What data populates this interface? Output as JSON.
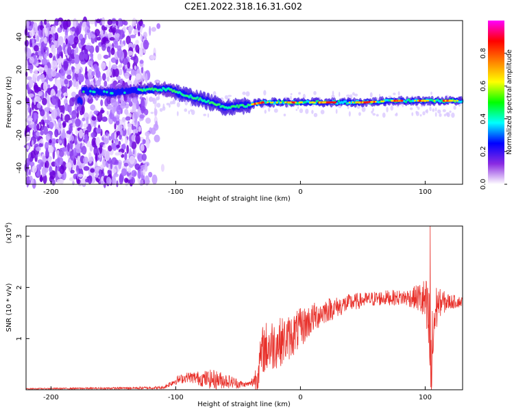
{
  "page_title": "C2E1.2022.318.16.31.G02",
  "chart_data": [
    {
      "type": "heatmap",
      "title": "C2E1.2022.318.16.31.G02",
      "xlabel": "Height of straight line (km)",
      "ylabel": "Frequency (Hz)",
      "xlim": [
        -220,
        130
      ],
      "ylim": [
        -50,
        50
      ],
      "xticks": [
        -200,
        -100,
        0,
        100
      ],
      "yticks": [
        -40,
        -20,
        0,
        20,
        40
      ],
      "colorbar": {
        "label": "Normalized spectral amplitude",
        "range": [
          0,
          1
        ],
        "ticks": [
          "0.0",
          "0.2",
          "0.4",
          "0.6",
          "0.8"
        ],
        "colors": [
          "#ffffff",
          "#8a2be2",
          "#0000ff",
          "#00ffff",
          "#00ff00",
          "#ffff00",
          "#ff8000",
          "#ff0000",
          "#ff00ff"
        ]
      },
      "ridge": {
        "description_points_km_hz": [
          [
            -175,
            7
          ],
          [
            -150,
            6
          ],
          [
            -120,
            8
          ],
          [
            -105,
            8
          ],
          [
            -95,
            5
          ],
          [
            -80,
            2
          ],
          [
            -60,
            -3
          ],
          [
            -45,
            -2
          ],
          [
            -30,
            0
          ],
          [
            0,
            0
          ],
          [
            25,
            0
          ],
          [
            50,
            0
          ],
          [
            75,
            1
          ],
          [
            100,
            1
          ],
          [
            130,
            1
          ]
        ]
      },
      "noise_region": {
        "x_from": -220,
        "x_to": -115,
        "level": "high"
      },
      "grid": false
    },
    {
      "type": "line",
      "xlabel": "Height of straight line (km)",
      "ylabel": "SNR (10 * v/v)",
      "multiplier": "(x10",
      "multiplier_exp": "4",
      "multiplier_close": ")",
      "xlim": [
        -220,
        130
      ],
      "ylim": [
        0,
        3.2
      ],
      "xticks": [
        -200,
        -100,
        0,
        100
      ],
      "yticks": [
        1,
        2,
        3
      ],
      "color": "#e8302a",
      "grid": false,
      "envelope": {
        "x": [
          -220,
          -150,
          -110,
          -100,
          -90,
          -80,
          -70,
          -60,
          -55,
          -50,
          -45,
          -40,
          -35,
          -30,
          -25,
          -20,
          -10,
          0,
          10,
          20,
          30,
          40,
          50,
          60,
          70,
          80,
          90,
          95,
          100,
          103,
          105,
          107,
          110,
          120,
          130
        ],
        "base": [
          0.02,
          0.03,
          0.04,
          0.18,
          0.25,
          0.22,
          0.2,
          0.18,
          0.15,
          0.12,
          0.1,
          0.12,
          0.25,
          0.8,
          0.85,
          0.9,
          1.0,
          1.2,
          1.4,
          1.55,
          1.62,
          1.7,
          1.75,
          1.78,
          1.8,
          1.8,
          1.8,
          1.8,
          1.7,
          1.2,
          0.3,
          1.3,
          1.7,
          1.72,
          1.72
        ],
        "amp": [
          0.01,
          0.02,
          0.03,
          0.08,
          0.1,
          0.15,
          0.2,
          0.15,
          0.12,
          0.1,
          0.05,
          0.05,
          0.3,
          0.5,
          0.55,
          0.5,
          0.45,
          0.4,
          0.3,
          0.25,
          0.2,
          0.18,
          0.15,
          0.15,
          0.15,
          0.15,
          0.2,
          0.3,
          0.5,
          0.9,
          1.0,
          0.9,
          0.3,
          0.15,
          0.1
        ]
      },
      "peak": {
        "x": 104,
        "y": 3.2
      },
      "dip": {
        "x": 104.5,
        "y": 0.05
      }
    }
  ]
}
